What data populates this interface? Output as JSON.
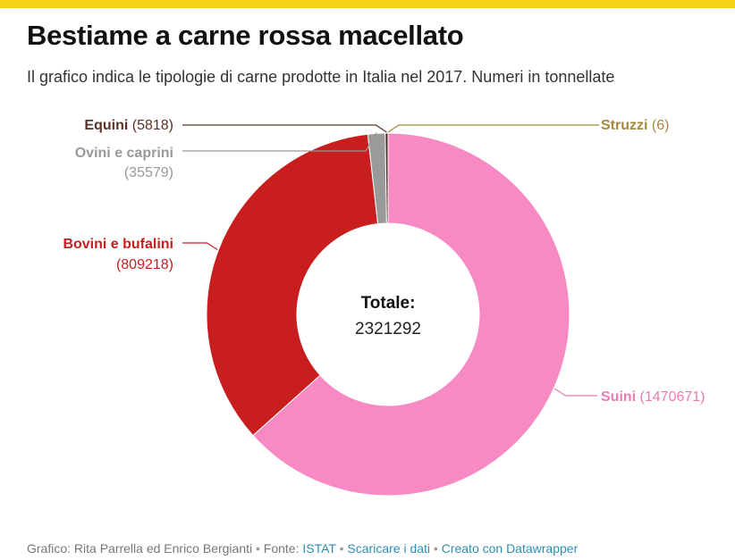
{
  "header": {
    "title": "Bestiame a carne rossa macellato",
    "subtitle": "Il grafico indica le tipologie di carne prodotte in Italia nel 2017. Numeri in tonnellate"
  },
  "chart_data": {
    "type": "pie",
    "variant": "donut",
    "title": "Bestiame a carne rossa macellato",
    "subtitle": "Il grafico indica le tipologie di carne prodotte in Italia nel 2017. Numeri in tonnellate",
    "center_label": "Totale:",
    "center_value": "2321292",
    "slices": [
      {
        "name": "Struzzi",
        "value": 6,
        "value_label": "(6)",
        "color": "#a4893a",
        "label_color": "#a4893a"
      },
      {
        "name": "Suini",
        "value": 1470671,
        "value_label": "(1470671)",
        "color": "#f78ac2",
        "label_color": "#e87db5"
      },
      {
        "name": "Bovini e bufalini",
        "value": 809218,
        "value_label": "(809218)",
        "color": "#c81e1e",
        "label_color": "#c81e1e"
      },
      {
        "name": "Ovini e caprini",
        "value": 35579,
        "value_label": "(35579)",
        "color": "#9a9a9a",
        "label_color": "#999999"
      },
      {
        "name": "Equini",
        "value": 5818,
        "value_label": "(5818)",
        "color": "#4a2a22",
        "label_color": "#5a3328"
      }
    ]
  },
  "footer": {
    "credit": "Grafico: Rita Parrella ed Enrico Bergianti",
    "source_prefix": "Fonte:",
    "source_link": "ISTAT",
    "download_link": "Scaricare i dati",
    "made_with": "Creato con Datawrapper",
    "separator": "•"
  }
}
